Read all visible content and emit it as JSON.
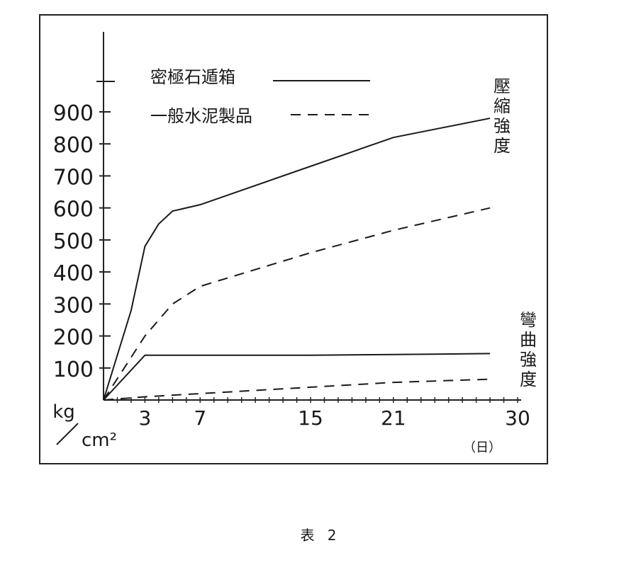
{
  "caption": "表 2",
  "chart_data": {
    "type": "line",
    "xlabel": "（日）",
    "ylabel_top": "kg",
    "ylabel_bottom": "cm²",
    "x_ticks": [
      3,
      7,
      15,
      21,
      30
    ],
    "y_ticks": [
      100,
      200,
      300,
      400,
      500,
      600,
      700,
      800,
      900
    ],
    "xlim": [
      0,
      30
    ],
    "ylim": [
      0,
      1000
    ],
    "legend": [
      {
        "label": "密極石遁箱",
        "style": "solid"
      },
      {
        "label": "一般水泥製品",
        "style": "dashed"
      }
    ],
    "group_labels": {
      "compressive": [
        "壓",
        "縮",
        "強",
        "度"
      ],
      "flexural": [
        "彎",
        "曲",
        "強",
        "度"
      ]
    },
    "series": [
      {
        "group": "compressive",
        "style": "solid",
        "points": [
          [
            0,
            0
          ],
          [
            2,
            280
          ],
          [
            3,
            480
          ],
          [
            4,
            550
          ],
          [
            5,
            590
          ],
          [
            7,
            610
          ],
          [
            15,
            730
          ],
          [
            21,
            820
          ],
          [
            28,
            880
          ]
        ]
      },
      {
        "group": "compressive",
        "style": "dashed",
        "points": [
          [
            0,
            0
          ],
          [
            3,
            200
          ],
          [
            5,
            300
          ],
          [
            7,
            355
          ],
          [
            15,
            460
          ],
          [
            21,
            530
          ],
          [
            28,
            600
          ]
        ]
      },
      {
        "group": "flexural",
        "style": "solid",
        "points": [
          [
            0,
            0
          ],
          [
            3,
            140
          ],
          [
            7,
            140
          ],
          [
            15,
            140
          ],
          [
            21,
            142
          ],
          [
            28,
            145
          ]
        ]
      },
      {
        "group": "flexural",
        "style": "dashed",
        "points": [
          [
            0,
            0
          ],
          [
            3,
            10
          ],
          [
            7,
            20
          ],
          [
            15,
            40
          ],
          [
            21,
            55
          ],
          [
            28,
            65
          ]
        ]
      }
    ]
  }
}
